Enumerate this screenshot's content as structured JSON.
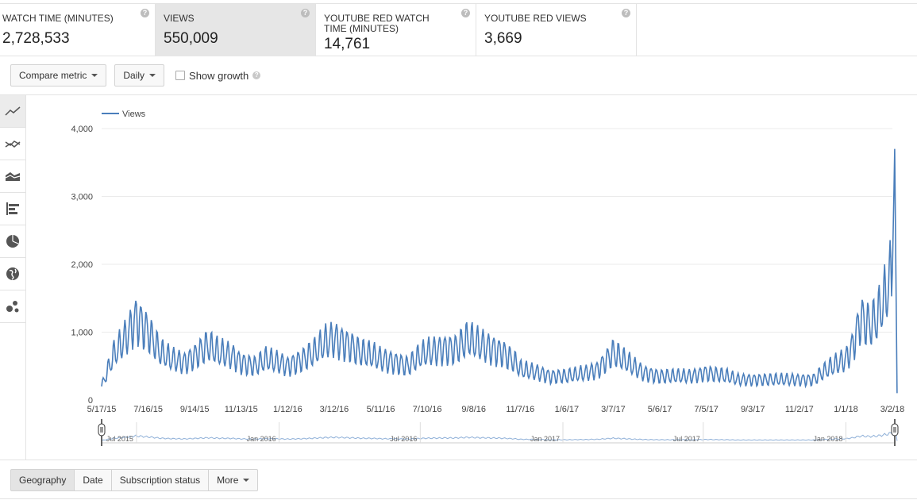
{
  "metrics": [
    {
      "label": "WATCH TIME (MINUTES)",
      "value": "2,728,533"
    },
    {
      "label": "VIEWS",
      "value": "550,009"
    },
    {
      "label": "YOUTUBE RED WATCH TIME (MINUTES)",
      "value": "14,761"
    },
    {
      "label": "YOUTUBE RED VIEWS",
      "value": "3,669"
    }
  ],
  "help_glyph": "?",
  "controls": {
    "compare_metric": "Compare metric",
    "interval": "Daily",
    "show_growth": "Show growth"
  },
  "chart_tools": [
    "line-chart-icon",
    "multiline-chart-icon",
    "stacked-area-icon",
    "bar-chart-icon",
    "pie-chart-icon",
    "globe-map-icon",
    "bubble-chart-icon"
  ],
  "tabs": {
    "geography": "Geography",
    "date": "Date",
    "subscription_status": "Subscription status",
    "more": "More"
  },
  "colors": {
    "series": "#4a7ebb",
    "grid": "#ebebeb"
  },
  "chart_data": {
    "type": "line",
    "title": "",
    "xlabel": "",
    "ylabel": "",
    "legend": "top-left",
    "ylim": [
      0,
      4000
    ],
    "yticks": [
      "0",
      "1,000",
      "2,000",
      "3,000",
      "4,000"
    ],
    "xticks": [
      "5/17/15",
      "7/16/15",
      "9/14/15",
      "11/13/15",
      "1/12/16",
      "3/12/16",
      "5/11/16",
      "7/10/16",
      "9/8/16",
      "11/7/16",
      "1/6/17",
      "3/7/17",
      "5/6/17",
      "7/5/17",
      "9/3/17",
      "11/2/17",
      "1/1/18",
      "3/2/18"
    ],
    "navigator_labels": [
      "Jul 2015",
      "Jan 2016",
      "Jul 2016",
      "Jan 2017",
      "Jul 2017",
      "Jan 2018"
    ],
    "series": [
      {
        "name": "Views",
        "x": [
          "5/17/15",
          "6/1/15",
          "6/16/15",
          "7/1/15",
          "7/16/15",
          "8/1/15",
          "8/15/15",
          "9/1/15",
          "9/14/15",
          "10/1/15",
          "10/15/15",
          "11/1/15",
          "11/13/15",
          "12/1/15",
          "12/15/15",
          "1/1/16",
          "1/12/16",
          "2/1/16",
          "2/15/16",
          "3/1/16",
          "3/12/16",
          "4/1/16",
          "4/15/16",
          "5/1/16",
          "5/11/16",
          "6/1/16",
          "6/15/16",
          "7/1/16",
          "7/10/16",
          "8/1/16",
          "8/15/16",
          "9/1/16",
          "9/8/16",
          "10/1/16",
          "10/15/16",
          "11/1/16",
          "11/7/16",
          "12/1/16",
          "12/15/16",
          "1/6/17",
          "2/1/17",
          "2/15/17",
          "3/7/17",
          "4/1/17",
          "4/15/17",
          "5/6/17",
          "6/1/17",
          "6/15/17",
          "7/5/17",
          "8/1/17",
          "8/15/17",
          "9/3/17",
          "10/1/17",
          "10/15/17",
          "11/2/17",
          "11/20/17",
          "12/1/17",
          "12/15/17",
          "1/1/18",
          "1/10/18",
          "1/20/18",
          "2/1/18",
          "2/10/18",
          "2/20/18",
          "3/2/18",
          "3/5/18",
          "3/8/18"
        ],
        "values": [
          200,
          650,
          900,
          1200,
          1000,
          700,
          600,
          550,
          650,
          800,
          700,
          650,
          550,
          500,
          600,
          550,
          500,
          600,
          700,
          850,
          900,
          800,
          700,
          650,
          600,
          550,
          500,
          650,
          700,
          750,
          750,
          900,
          850,
          750,
          700,
          550,
          450,
          400,
          350,
          350,
          400,
          450,
          700,
          500,
          400,
          350,
          350,
          350,
          400,
          350,
          300,
          300,
          300,
          300,
          300,
          300,
          400,
          500,
          600,
          800,
          1200,
          1100,
          1200,
          1500,
          1900,
          3700,
          100
        ]
      }
    ]
  }
}
